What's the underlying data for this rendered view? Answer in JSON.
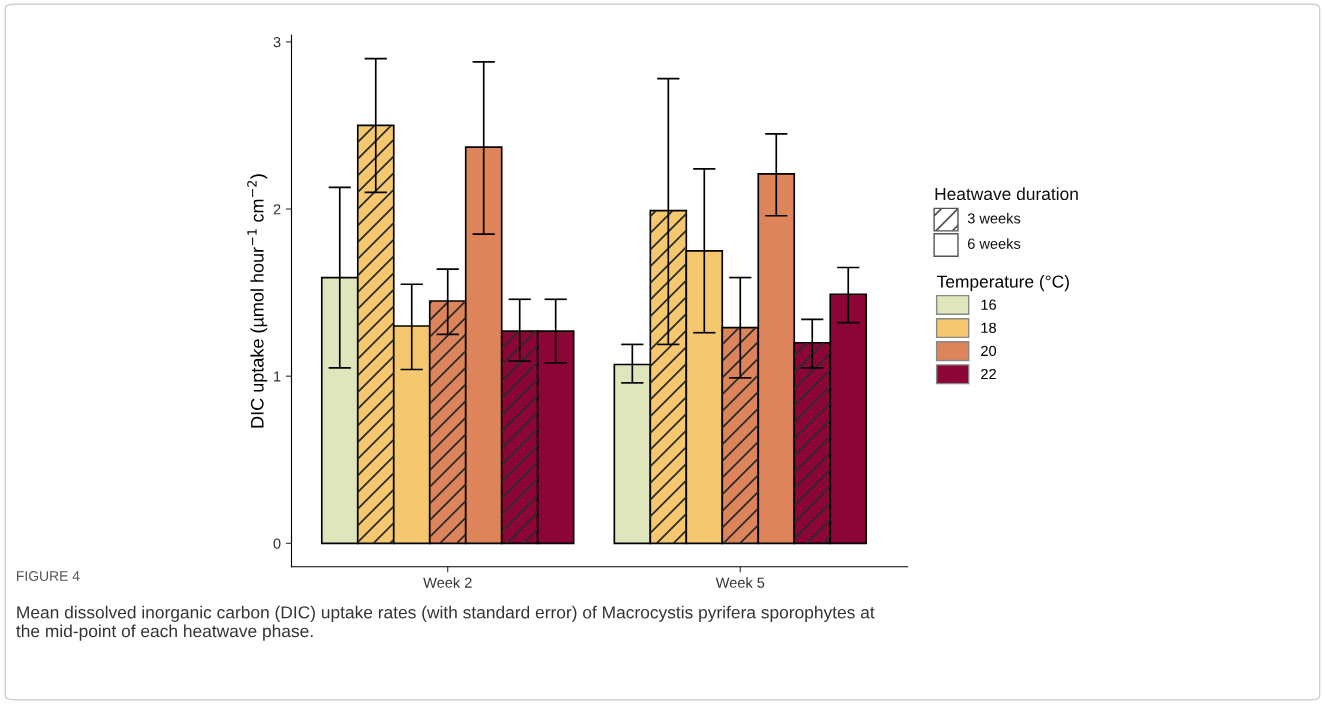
{
  "chart_data": {
    "type": "bar",
    "ylabel": "DIC uptake (µmol hour$^{−1}$ cm$^{−2}$)",
    "categories": [
      "Week 2",
      "Week 5"
    ],
    "ylim": [
      -0.14,
      3.04
    ],
    "yticks": [
      0,
      1,
      2,
      3
    ],
    "grid": false,
    "legend": "right",
    "legend_title": [
      "Heatwave duration",
      "Temperature (°C)"
    ],
    "series": [
      {
        "name": "16",
        "color": "#e0e6bb",
        "values": [
          1.59,
          1.07
        ],
        "errors": [
          [
            1.05,
            2.13
          ],
          [
            0.96,
            1.19
          ]
        ]
      },
      {
        "color": "#f5c870",
        "values": [
          2.5,
          1.99
        ],
        "errors": [
          [
            2.1,
            2.9
          ],
          [
            1.19,
            2.78
          ]
        ]
      },
      {
        "name": "18",
        "color": "#f5c870",
        "values": [
          1.3,
          1.75
        ],
        "errors": [
          [
            1.04,
            1.55
          ],
          [
            1.26,
            2.24
          ]
        ]
      },
      {
        "color": "#dd845a",
        "values": [
          1.45,
          1.29
        ],
        "errors": [
          [
            1.25,
            1.64
          ],
          [
            0.99,
            1.59
          ]
        ]
      },
      {
        "name": "20",
        "color": "#dd845a",
        "values": [
          2.37,
          2.21
        ],
        "errors": [
          [
            1.85,
            2.88
          ],
          [
            1.96,
            2.45
          ]
        ]
      },
      {
        "color": "#8c0537",
        "values": [
          1.27,
          1.2
        ],
        "errors": [
          [
            1.09,
            1.46
          ],
          [
            1.05,
            1.34
          ]
        ]
      },
      {
        "name": "22",
        "color": "#8c0537",
        "values": [
          1.27,
          1.49
        ],
        "errors": [
          [
            1.08,
            1.46
          ],
          [
            1.32,
            1.65
          ]
        ]
      }
    ],
    "annotations": [
      "3 weeks",
      "6 weeks",
      "FIGURE 4",
      "Mean dissolved inorganic carbon (DIC) uptake rates (with standard error) of Macrocystis pyrifera sporophytes at the mid-point of each heatwave phase."
    ]
  }
}
